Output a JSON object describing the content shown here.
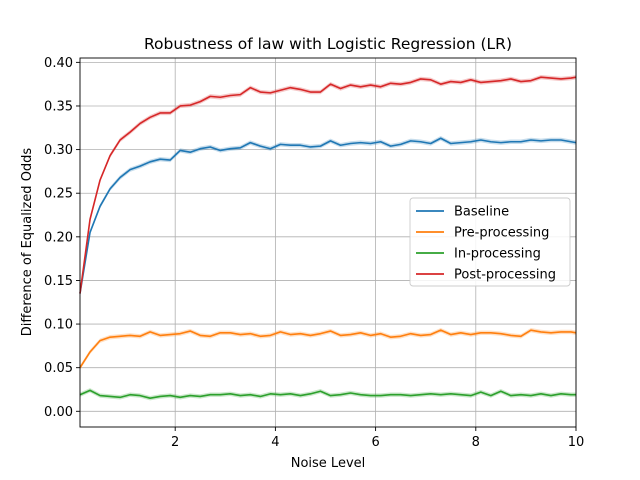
{
  "chart_data": {
    "type": "line",
    "title": "Robustness of law with Logistic Regression (LR)",
    "xlabel": "Noise Level",
    "ylabel": "Difference of Equalized Odds",
    "xlim": [
      0.1,
      10
    ],
    "ylim": [
      -0.018,
      0.405
    ],
    "xticks": [
      2,
      4,
      6,
      8,
      10
    ],
    "yticks": [
      0.0,
      0.05,
      0.1,
      0.15,
      0.2,
      0.25,
      0.3,
      0.35,
      0.4
    ],
    "xtick_labels": [
      "2",
      "4",
      "6",
      "8",
      "10"
    ],
    "ytick_labels": [
      "0.00",
      "0.05",
      "0.10",
      "0.15",
      "0.20",
      "0.25",
      "0.30",
      "0.35",
      "0.40"
    ],
    "grid": true,
    "legend_position": "center-right",
    "x": [
      0.1,
      0.3,
      0.5,
      0.7,
      0.9,
      1.1,
      1.3,
      1.5,
      1.7,
      1.9,
      2.1,
      2.3,
      2.5,
      2.7,
      2.9,
      3.1,
      3.3,
      3.5,
      3.7,
      3.9,
      4.1,
      4.3,
      4.5,
      4.7,
      4.9,
      5.1,
      5.3,
      5.5,
      5.7,
      5.9,
      6.1,
      6.3,
      6.5,
      6.7,
      6.9,
      7.1,
      7.3,
      7.5,
      7.7,
      7.9,
      8.1,
      8.3,
      8.5,
      8.7,
      8.9,
      9.1,
      9.3,
      9.5,
      9.7,
      9.9,
      10.0
    ],
    "series": [
      {
        "name": "Baseline",
        "color": "#1f77b4",
        "values": [
          0.135,
          0.205,
          0.235,
          0.255,
          0.268,
          0.277,
          0.281,
          0.286,
          0.289,
          0.288,
          0.299,
          0.297,
          0.301,
          0.303,
          0.299,
          0.301,
          0.302,
          0.308,
          0.304,
          0.301,
          0.306,
          0.305,
          0.305,
          0.303,
          0.304,
          0.31,
          0.305,
          0.307,
          0.308,
          0.307,
          0.309,
          0.304,
          0.306,
          0.31,
          0.309,
          0.307,
          0.313,
          0.307,
          0.308,
          0.309,
          0.311,
          0.309,
          0.308,
          0.309,
          0.309,
          0.311,
          0.31,
          0.311,
          0.311,
          0.309,
          0.308
        ]
      },
      {
        "name": "Pre-processing",
        "color": "#ff7f0e",
        "values": [
          0.05,
          0.068,
          0.081,
          0.085,
          0.086,
          0.087,
          0.086,
          0.091,
          0.087,
          0.088,
          0.089,
          0.092,
          0.087,
          0.086,
          0.09,
          0.09,
          0.088,
          0.089,
          0.086,
          0.087,
          0.091,
          0.088,
          0.089,
          0.087,
          0.089,
          0.092,
          0.087,
          0.088,
          0.09,
          0.087,
          0.089,
          0.085,
          0.086,
          0.089,
          0.087,
          0.088,
          0.093,
          0.088,
          0.09,
          0.088,
          0.09,
          0.09,
          0.089,
          0.087,
          0.086,
          0.093,
          0.091,
          0.09,
          0.091,
          0.091,
          0.09
        ]
      },
      {
        "name": "In-processing",
        "color": "#2ca02c",
        "values": [
          0.019,
          0.024,
          0.018,
          0.017,
          0.016,
          0.019,
          0.018,
          0.015,
          0.017,
          0.018,
          0.016,
          0.018,
          0.017,
          0.019,
          0.019,
          0.02,
          0.018,
          0.019,
          0.017,
          0.02,
          0.019,
          0.02,
          0.018,
          0.02,
          0.023,
          0.018,
          0.019,
          0.021,
          0.019,
          0.018,
          0.018,
          0.019,
          0.019,
          0.018,
          0.019,
          0.02,
          0.019,
          0.02,
          0.019,
          0.018,
          0.022,
          0.018,
          0.023,
          0.018,
          0.019,
          0.018,
          0.02,
          0.018,
          0.02,
          0.019,
          0.019
        ]
      },
      {
        "name": "Post-processing",
        "color": "#d62728",
        "values": [
          0.135,
          0.22,
          0.265,
          0.293,
          0.311,
          0.32,
          0.33,
          0.337,
          0.342,
          0.342,
          0.35,
          0.351,
          0.355,
          0.361,
          0.36,
          0.362,
          0.363,
          0.371,
          0.366,
          0.365,
          0.368,
          0.371,
          0.369,
          0.366,
          0.366,
          0.375,
          0.37,
          0.374,
          0.372,
          0.374,
          0.372,
          0.376,
          0.375,
          0.377,
          0.381,
          0.38,
          0.375,
          0.378,
          0.377,
          0.38,
          0.377,
          0.378,
          0.379,
          0.381,
          0.378,
          0.379,
          0.383,
          0.382,
          0.381,
          0.382,
          0.383
        ]
      }
    ]
  }
}
